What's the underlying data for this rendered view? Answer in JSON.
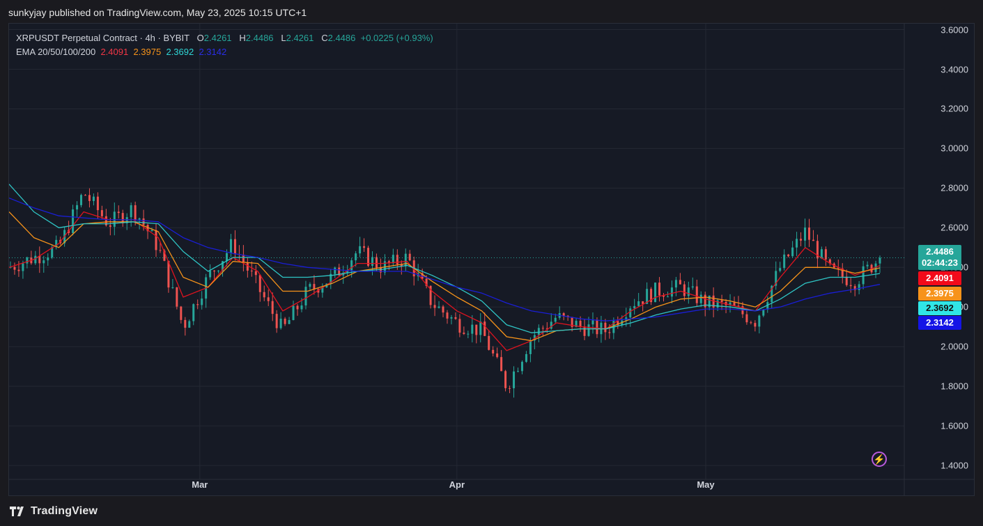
{
  "header": {
    "caption": "sunkyjay published on TradingView.com, May 23, 2025 10:15 UTC+1"
  },
  "legend": {
    "symbol": "XRPUSDT Perpetual Contract · 4h · BYBIT",
    "open_label": "O",
    "open": "2.4261",
    "high_label": "H",
    "high": "2.4486",
    "low_label": "L",
    "low": "2.4261",
    "close_label": "C",
    "close": "2.4486",
    "change": "+0.0225 (+0.93%)",
    "ema_label": "EMA 20/50/100/200",
    "ema20": "2.4091",
    "ema50": "2.3975",
    "ema100": "2.3692",
    "ema200": "2.3142"
  },
  "price_tag": {
    "price": "2.4486",
    "countdown": "02:44:23"
  },
  "colors": {
    "up": "#26a69a",
    "down": "#ef5350",
    "ema20": "#e0131f",
    "ema50": "#f7931a",
    "ema100": "#2fc6c6",
    "ema200": "#1a1ed6",
    "price_tag": "#26a69a"
  },
  "footer": {
    "brand": "TradingView",
    "logo_icon": "tradingview-logo-icon"
  },
  "icons": {
    "bolt": "lightning-bolt-icon"
  },
  "chart_data": {
    "type": "candlestick",
    "title": "XRPUSDT Perpetual Contract · 4h · BYBIT",
    "timeframe": "4h",
    "x_tick_labels": [
      "Mar",
      "Apr",
      "May"
    ],
    "y_tick_labels": [
      "1.4000",
      "1.6000",
      "1.8000",
      "2.0000",
      "2.2000",
      "2.4000",
      "2.6000",
      "2.8000",
      "3.0000",
      "3.2000",
      "3.4000",
      "3.6000"
    ],
    "ylim": [
      1.33,
      3.63
    ],
    "last_price": 2.4486,
    "price_path": {
      "description": "approximate close path read from chart, evenly spaced over the period",
      "x": [
        "Feb 6",
        "Feb 9",
        "Feb 12",
        "Feb 15",
        "Feb 18",
        "Feb 21",
        "Feb 24",
        "Feb 27",
        "Mar 2",
        "Mar 5",
        "Mar 8",
        "Mar 11",
        "Mar 14",
        "Mar 17",
        "Mar 20",
        "Mar 23",
        "Mar 26",
        "Mar 29",
        "Apr 1",
        "Apr 4",
        "Apr 7",
        "Apr 10",
        "Apr 13",
        "Apr 16",
        "Apr 19",
        "Apr 22",
        "Apr 25",
        "Apr 28",
        "May 1",
        "May 4",
        "May 7",
        "May 10",
        "May 13",
        "May 16",
        "May 19",
        "May 22"
      ],
      "close": [
        2.4,
        2.45,
        2.5,
        2.78,
        2.62,
        2.7,
        2.5,
        2.1,
        2.35,
        2.52,
        2.3,
        2.08,
        2.28,
        2.35,
        2.48,
        2.4,
        2.45,
        2.22,
        2.12,
        2.08,
        1.8,
        2.05,
        2.15,
        2.1,
        2.08,
        2.22,
        2.28,
        2.3,
        2.22,
        2.2,
        2.13,
        2.4,
        2.58,
        2.38,
        2.33,
        2.4486
      ]
    },
    "series": [
      {
        "name": "EMA 20",
        "last": 2.4091,
        "values": [
          2.4,
          2.44,
          2.52,
          2.68,
          2.64,
          2.64,
          2.55,
          2.25,
          2.3,
          2.45,
          2.38,
          2.18,
          2.25,
          2.33,
          2.42,
          2.42,
          2.43,
          2.28,
          2.18,
          2.12,
          1.98,
          2.03,
          2.12,
          2.1,
          2.09,
          2.18,
          2.25,
          2.28,
          2.24,
          2.21,
          2.18,
          2.35,
          2.5,
          2.42,
          2.36,
          2.4091
        ]
      },
      {
        "name": "EMA 50",
        "last": 2.3975,
        "values": [
          2.68,
          2.55,
          2.5,
          2.62,
          2.63,
          2.63,
          2.58,
          2.35,
          2.3,
          2.43,
          2.42,
          2.28,
          2.28,
          2.32,
          2.38,
          2.4,
          2.42,
          2.33,
          2.25,
          2.18,
          2.05,
          2.03,
          2.08,
          2.09,
          2.09,
          2.14,
          2.2,
          2.24,
          2.25,
          2.23,
          2.2,
          2.28,
          2.4,
          2.4,
          2.37,
          2.3975
        ]
      },
      {
        "name": "EMA 100",
        "last": 2.3692,
        "values": [
          2.82,
          2.68,
          2.6,
          2.62,
          2.62,
          2.63,
          2.62,
          2.48,
          2.38,
          2.45,
          2.45,
          2.35,
          2.35,
          2.36,
          2.38,
          2.39,
          2.41,
          2.36,
          2.3,
          2.23,
          2.11,
          2.07,
          2.08,
          2.09,
          2.09,
          2.12,
          2.16,
          2.19,
          2.21,
          2.2,
          2.18,
          2.24,
          2.32,
          2.35,
          2.35,
          2.3692
        ]
      },
      {
        "name": "EMA 200",
        "last": 2.3142,
        "values": [
          2.75,
          2.7,
          2.66,
          2.65,
          2.64,
          2.64,
          2.63,
          2.55,
          2.5,
          2.47,
          2.45,
          2.42,
          2.4,
          2.39,
          2.38,
          2.38,
          2.38,
          2.34,
          2.3,
          2.27,
          2.22,
          2.18,
          2.16,
          2.14,
          2.13,
          2.14,
          2.15,
          2.17,
          2.19,
          2.19,
          2.18,
          2.2,
          2.24,
          2.27,
          2.29,
          2.3142
        ]
      }
    ],
    "grid": true,
    "legend_position": "top-left"
  }
}
